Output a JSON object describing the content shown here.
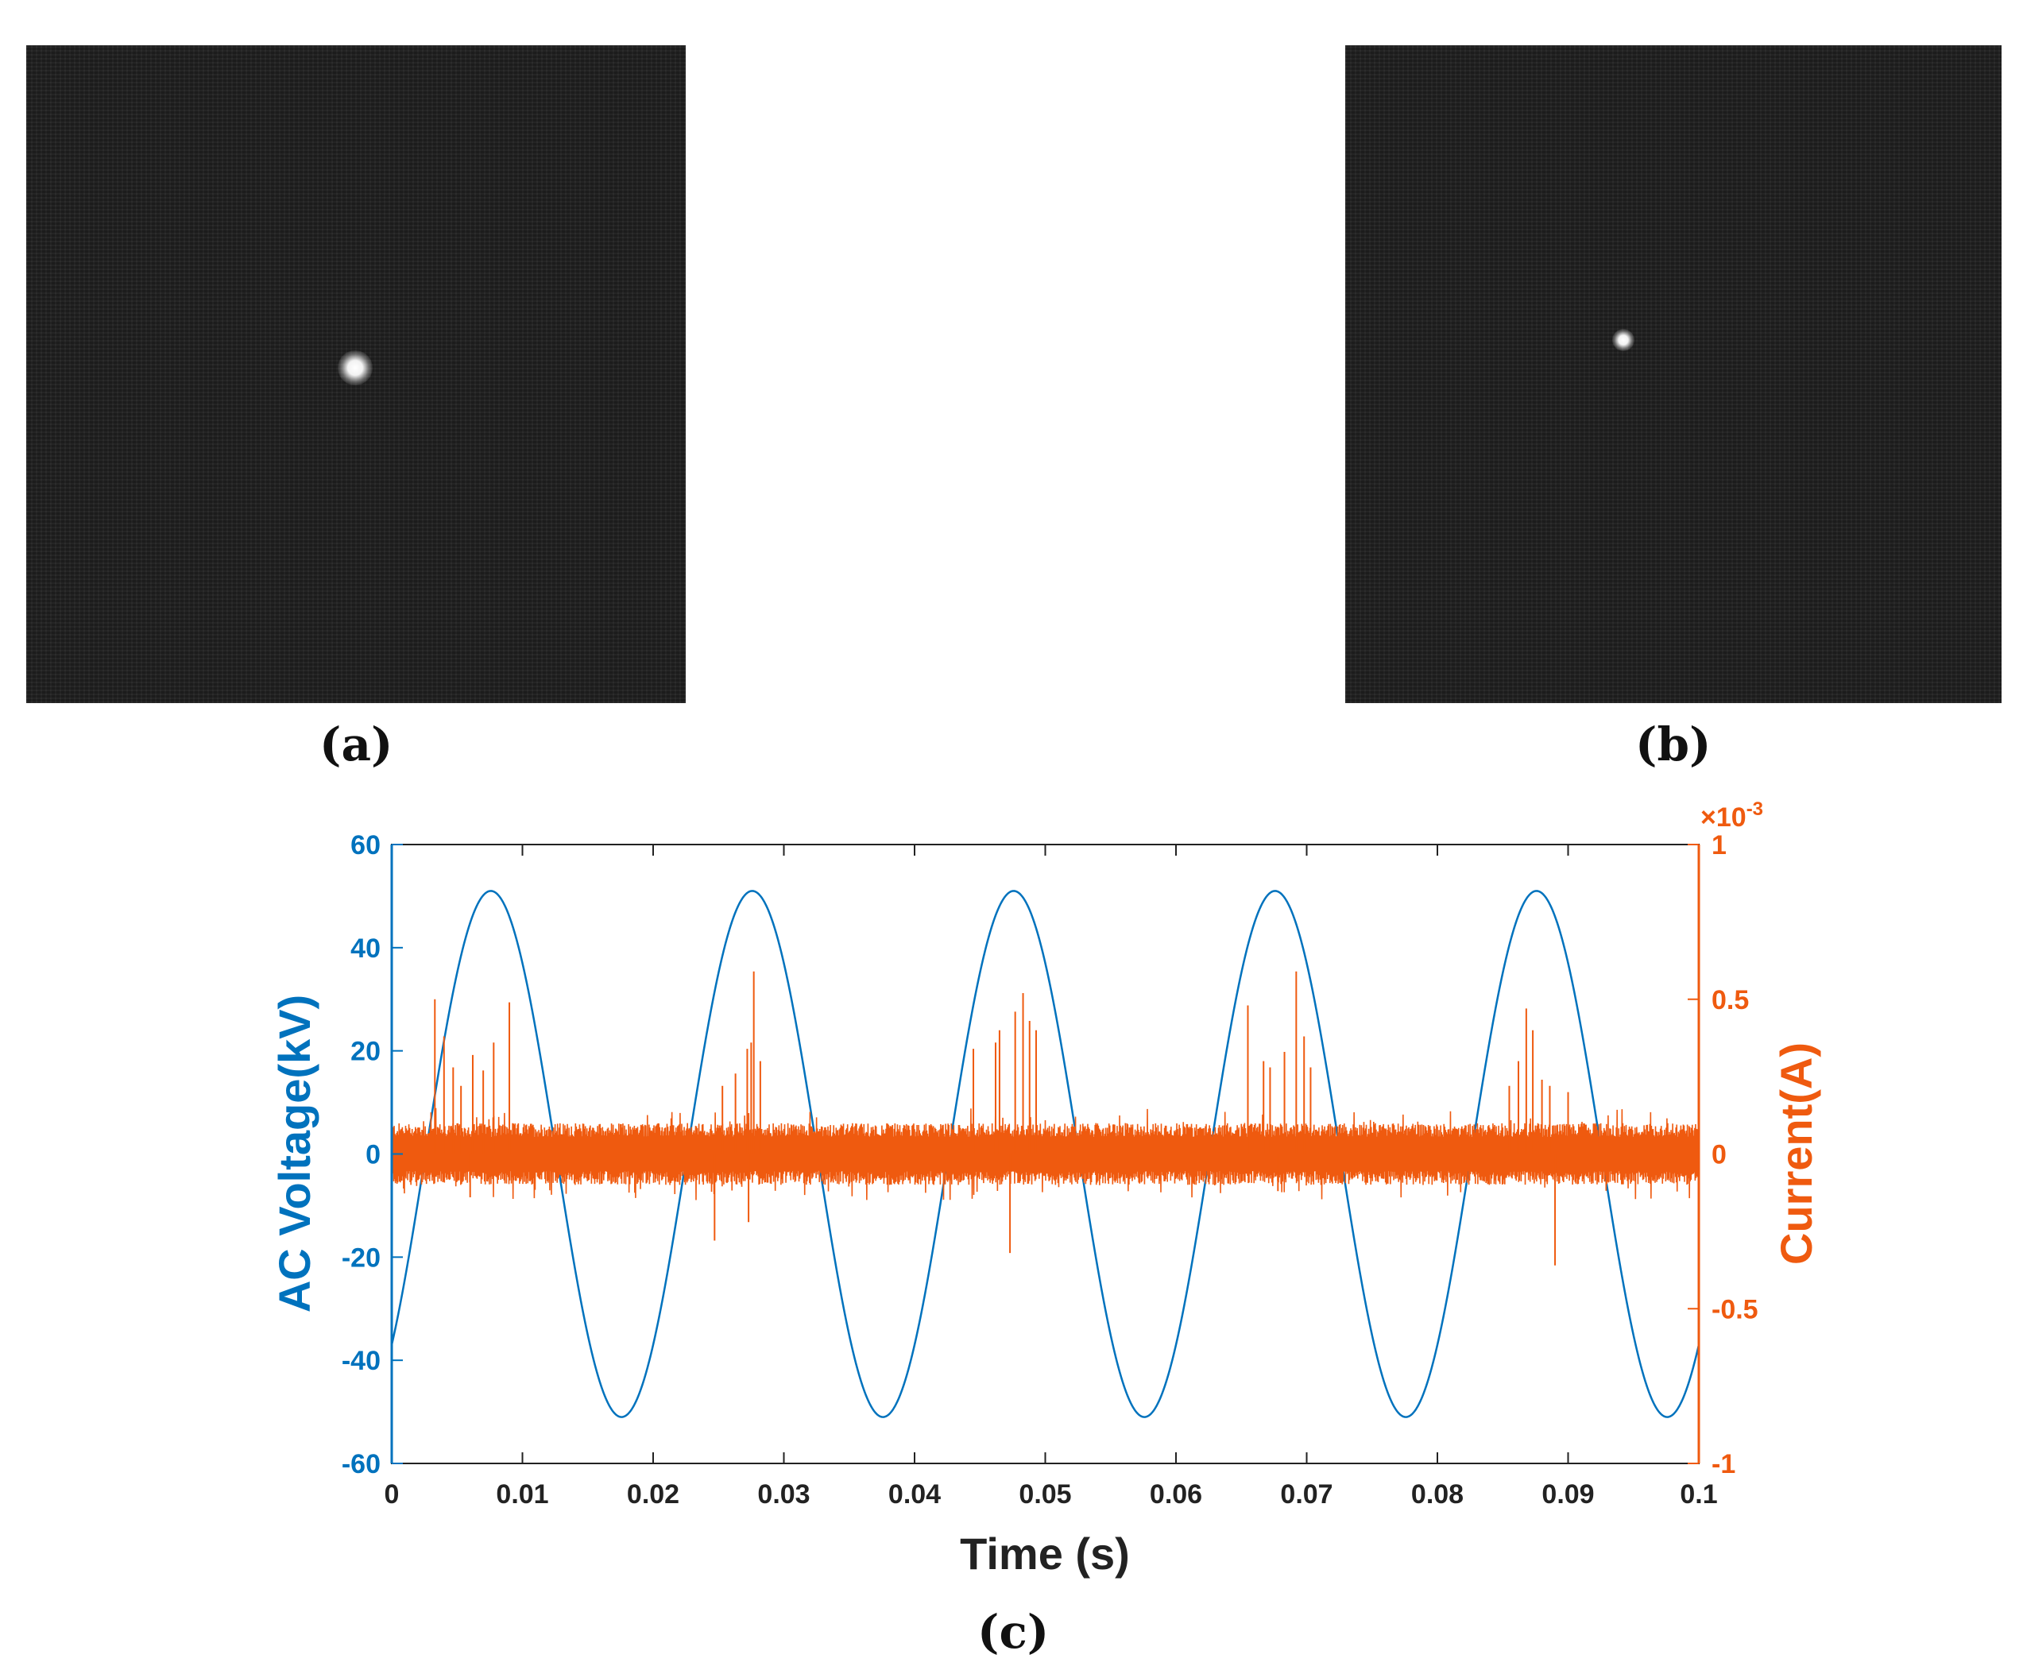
{
  "panels": {
    "a": {
      "label": "(a)"
    },
    "b": {
      "label": "(b)"
    },
    "c": {
      "label": "(c)"
    }
  },
  "colors": {
    "voltage": "#0072BD",
    "current": "#EF5A0F",
    "photo_background": "#1e1e1e",
    "text": "#111111"
  },
  "chart_data": {
    "type": "line",
    "x": {
      "label": "Time (s)",
      "lim": [
        0,
        0.1
      ],
      "ticks": [
        0,
        0.01,
        0.02,
        0.03,
        0.04,
        0.05,
        0.06,
        0.07,
        0.08,
        0.09,
        0.1
      ],
      "tick_labels": [
        "0",
        "0.01",
        "0.02",
        "0.03",
        "0.04",
        "0.05",
        "0.06",
        "0.07",
        "0.08",
        "0.09",
        "0.1"
      ]
    },
    "y_left": {
      "label": "AC Voltage(kV)",
      "lim": [
        -60,
        60
      ],
      "ticks": [
        -60,
        -40,
        -20,
        0,
        20,
        40,
        60
      ],
      "tick_labels": [
        "-60",
        "-40",
        "-20",
        "0",
        "20",
        "40",
        "60"
      ]
    },
    "y_right": {
      "label": "Current(A)",
      "lim": [
        -1,
        1
      ],
      "ticks": [
        -1,
        -0.5,
        0,
        0.5,
        1
      ],
      "tick_labels": [
        "-1",
        "-0.5",
        "0",
        "0.5",
        "1"
      ],
      "exponent_label": "×10",
      "exponent_power": "-3"
    },
    "series": [
      {
        "name": "AC Voltage",
        "axis": "left",
        "function": "sine",
        "amplitude_kV": 51,
        "frequency_Hz": 50,
        "value_at_t0_kV": -37,
        "peak_times_s": [
          0.0073,
          0.0273,
          0.0473,
          0.0673,
          0.0873
        ],
        "trough_times_s": [
          0.0173,
          0.0373,
          0.0573,
          0.0773,
          0.0973
        ]
      },
      {
        "name": "Current",
        "axis": "right",
        "scale": "1e-3 A",
        "noise_band": [
          -0.1,
          0.1
        ],
        "spikes": [
          {
            "t": 0.0033,
            "v": 0.5
          },
          {
            "t": 0.004,
            "v": 0.38
          },
          {
            "t": 0.0047,
            "v": 0.28
          },
          {
            "t": 0.0053,
            "v": 0.22
          },
          {
            "t": 0.0062,
            "v": 0.32
          },
          {
            "t": 0.007,
            "v": 0.27
          },
          {
            "t": 0.0078,
            "v": 0.36
          },
          {
            "t": 0.009,
            "v": 0.49
          },
          {
            "t": 0.006,
            "v": -0.14
          },
          {
            "t": 0.0247,
            "v": -0.28
          },
          {
            "t": 0.0253,
            "v": 0.22
          },
          {
            "t": 0.0263,
            "v": 0.26
          },
          {
            "t": 0.0272,
            "v": 0.34
          },
          {
            "t": 0.0275,
            "v": 0.36
          },
          {
            "t": 0.0277,
            "v": 0.59
          },
          {
            "t": 0.0282,
            "v": 0.3
          },
          {
            "t": 0.0273,
            "v": -0.22
          },
          {
            "t": 0.0445,
            "v": 0.34
          },
          {
            "t": 0.0462,
            "v": 0.36
          },
          {
            "t": 0.0465,
            "v": 0.4
          },
          {
            "t": 0.0477,
            "v": 0.46
          },
          {
            "t": 0.0483,
            "v": 0.52
          },
          {
            "t": 0.0488,
            "v": 0.43
          },
          {
            "t": 0.0493,
            "v": 0.4
          },
          {
            "t": 0.0473,
            "v": -0.32
          },
          {
            "t": 0.0655,
            "v": 0.48
          },
          {
            "t": 0.0667,
            "v": 0.3
          },
          {
            "t": 0.0672,
            "v": 0.28
          },
          {
            "t": 0.0683,
            "v": 0.33
          },
          {
            "t": 0.0692,
            "v": 0.59
          },
          {
            "t": 0.0698,
            "v": 0.38
          },
          {
            "t": 0.0703,
            "v": 0.28
          },
          {
            "t": 0.0678,
            "v": -0.12
          },
          {
            "t": 0.0855,
            "v": 0.22
          },
          {
            "t": 0.0862,
            "v": 0.3
          },
          {
            "t": 0.0868,
            "v": 0.47
          },
          {
            "t": 0.0873,
            "v": 0.4
          },
          {
            "t": 0.088,
            "v": 0.24
          },
          {
            "t": 0.0886,
            "v": 0.22
          },
          {
            "t": 0.089,
            "v": -0.36
          },
          {
            "t": 0.09,
            "v": 0.2
          }
        ]
      }
    ]
  }
}
